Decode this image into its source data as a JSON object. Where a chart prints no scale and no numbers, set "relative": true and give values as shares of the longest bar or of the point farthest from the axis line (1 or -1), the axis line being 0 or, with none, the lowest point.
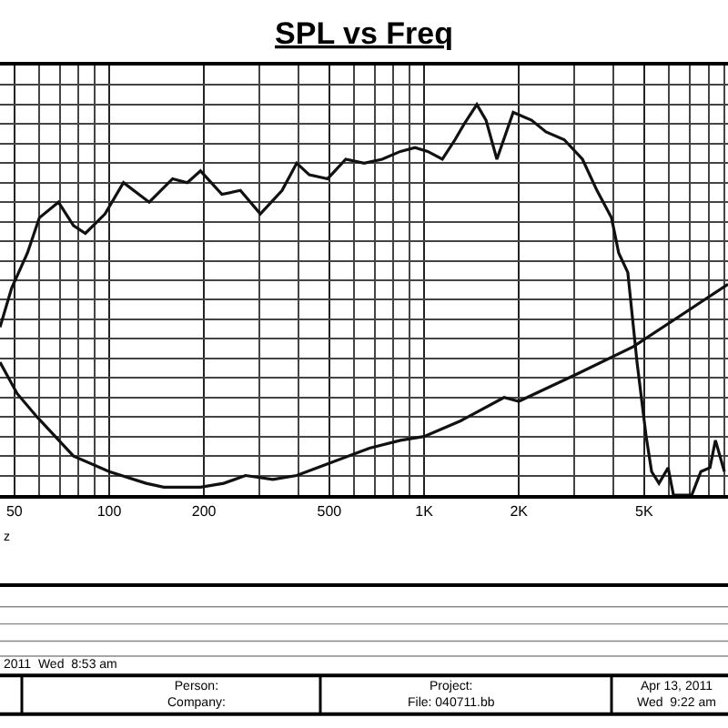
{
  "chart_data": {
    "type": "line",
    "title": "SPL vs Freq",
    "relative": true,
    "log": "x",
    "grid": true,
    "legend": false,
    "marker": "none",
    "line_style": "solid",
    "xlim": [
      45,
      9230
    ],
    "xticks": [
      50,
      100,
      200,
      500,
      {
        "value": 1000,
        "label": "1K"
      },
      {
        "value": 2000,
        "label": "2K"
      },
      {
        "value": 5000,
        "label": "5K"
      }
    ],
    "series": [
      {
        "color": "#111111",
        "x": [
          45,
          49,
          55,
          60,
          69,
          77,
          84,
          97,
          111,
          134,
          159,
          177,
          195,
          228,
          261,
          302,
          354,
          394,
          432,
          494,
          564,
          645,
          736,
          841,
          936,
          1027,
          1143,
          1254,
          1340,
          1471,
          1573,
          1703,
          1919,
          2194,
          2439,
          2786,
          3184,
          3541,
          3938,
          4150,
          4436,
          4746,
          5073,
          5280,
          5573,
          5957,
          6194,
          7080,
          7570,
          8090,
          8420,
          8990
        ],
        "values": [
          0.43,
          0.53,
          0.62,
          0.71,
          0.75,
          0.69,
          0.67,
          0.72,
          0.8,
          0.75,
          0.81,
          0.8,
          0.83,
          0.77,
          0.78,
          0.72,
          0.78,
          0.85,
          0.82,
          0.81,
          0.86,
          0.85,
          0.86,
          0.88,
          0.89,
          0.88,
          0.86,
          0.91,
          0.95,
          1.0,
          0.96,
          0.86,
          0.98,
          0.96,
          0.93,
          0.91,
          0.86,
          0.78,
          0.71,
          0.62,
          0.57,
          0.34,
          0.15,
          0.06,
          0.03,
          0.07,
          0.0,
          0.0,
          0.06,
          0.07,
          0.14,
          0.06
        ]
      },
      {
        "color": "#111111",
        "x": [
          45,
          51,
          59,
          77,
          100,
          131,
          149,
          195,
          231,
          271,
          331,
          394,
          494,
          671,
          841,
          1000,
          1306,
          1795,
          2000,
          3060,
          4621,
          9230
        ],
        "values": [
          0.34,
          0.26,
          0.2,
          0.1,
          0.06,
          0.03,
          0.02,
          0.02,
          0.03,
          0.05,
          0.04,
          0.05,
          0.08,
          0.12,
          0.14,
          0.15,
          0.19,
          0.25,
          0.24,
          0.31,
          0.38,
          0.54
        ]
      }
    ],
    "annotations": [
      "z",
      "2011  Wed  8:53 am",
      "Person:\nCompany:",
      "Project:\nFile: 040711.bb",
      "Apr 13, 2011\nWed  9:22 am"
    ]
  }
}
